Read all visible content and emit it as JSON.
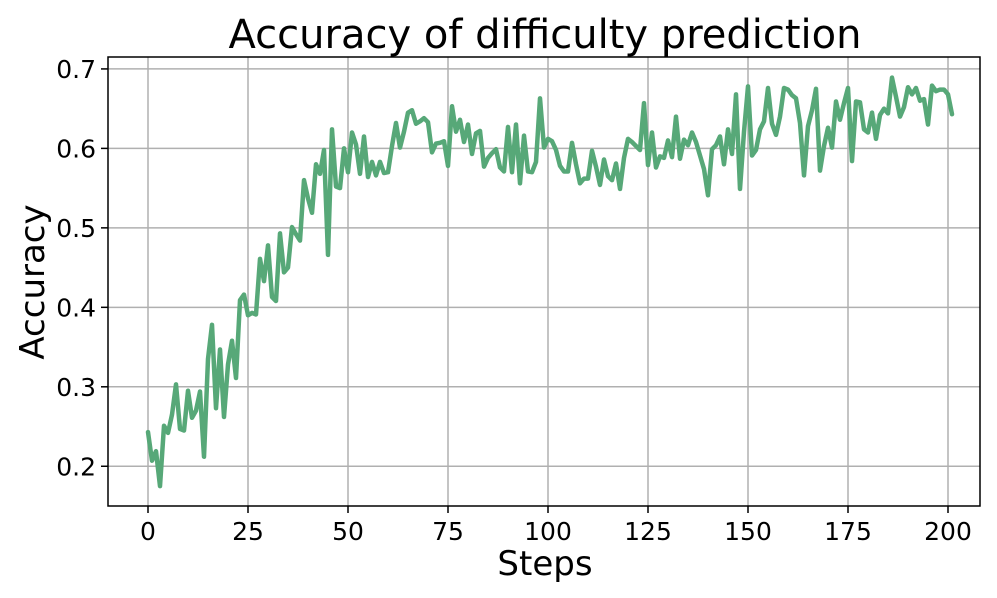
{
  "chart_data": {
    "type": "line",
    "title": "Accuracy of difficulty prediction",
    "xlabel": "Steps",
    "ylabel": "Accuracy",
    "xlim": [
      -10,
      208
    ],
    "ylim": [
      0.15,
      0.715
    ],
    "xticks": [
      0,
      25,
      50,
      75,
      100,
      125,
      150,
      175,
      200
    ],
    "yticks": [
      0.2,
      0.3,
      0.4,
      0.5,
      0.6,
      0.7
    ],
    "grid": true,
    "line_color": "#57A878",
    "series": [
      {
        "values": [
          0.243,
          0.207,
          0.219,
          0.175,
          0.251,
          0.242,
          0.265,
          0.303,
          0.247,
          0.245,
          0.295,
          0.261,
          0.27,
          0.294,
          0.212,
          0.335,
          0.378,
          0.273,
          0.347,
          0.262,
          0.328,
          0.358,
          0.311,
          0.409,
          0.416,
          0.39,
          0.393,
          0.391,
          0.461,
          0.433,
          0.478,
          0.413,
          0.408,
          0.493,
          0.444,
          0.45,
          0.501,
          0.492,
          0.484,
          0.56,
          0.537,
          0.519,
          0.58,
          0.568,
          0.598,
          0.466,
          0.624,
          0.552,
          0.55,
          0.6,
          0.57,
          0.62,
          0.605,
          0.568,
          0.615,
          0.564,
          0.583,
          0.566,
          0.583,
          0.569,
          0.57,
          0.603,
          0.632,
          0.601,
          0.621,
          0.645,
          0.648,
          0.631,
          0.634,
          0.638,
          0.633,
          0.595,
          0.606,
          0.607,
          0.609,
          0.578,
          0.653,
          0.621,
          0.636,
          0.608,
          0.63,
          0.593,
          0.619,
          0.622,
          0.577,
          0.588,
          0.594,
          0.599,
          0.576,
          0.571,
          0.627,
          0.57,
          0.63,
          0.556,
          0.616,
          0.571,
          0.57,
          0.583,
          0.663,
          0.601,
          0.612,
          0.609,
          0.598,
          0.578,
          0.571,
          0.571,
          0.607,
          0.58,
          0.556,
          0.562,
          0.562,
          0.597,
          0.577,
          0.554,
          0.586,
          0.565,
          0.56,
          0.581,
          0.549,
          0.588,
          0.612,
          0.608,
          0.603,
          0.598,
          0.657,
          0.579,
          0.62,
          0.576,
          0.59,
          0.588,
          0.61,
          0.589,
          0.64,
          0.587,
          0.611,
          0.604,
          0.62,
          0.608,
          0.591,
          0.574,
          0.541,
          0.599,
          0.604,
          0.615,
          0.58,
          0.624,
          0.593,
          0.668,
          0.549,
          0.621,
          0.678,
          0.591,
          0.598,
          0.624,
          0.634,
          0.676,
          0.631,
          0.617,
          0.64,
          0.676,
          0.674,
          0.667,
          0.663,
          0.632,
          0.566,
          0.628,
          0.648,
          0.675,
          0.572,
          0.603,
          0.626,
          0.601,
          0.659,
          0.636,
          0.657,
          0.676,
          0.584,
          0.659,
          0.658,
          0.624,
          0.62,
          0.645,
          0.612,
          0.642,
          0.65,
          0.644,
          0.689,
          0.665,
          0.64,
          0.652,
          0.677,
          0.668,
          0.676,
          0.66,
          0.662,
          0.63,
          0.679,
          0.672,
          0.674,
          0.674,
          0.668,
          0.643
        ]
      }
    ]
  }
}
